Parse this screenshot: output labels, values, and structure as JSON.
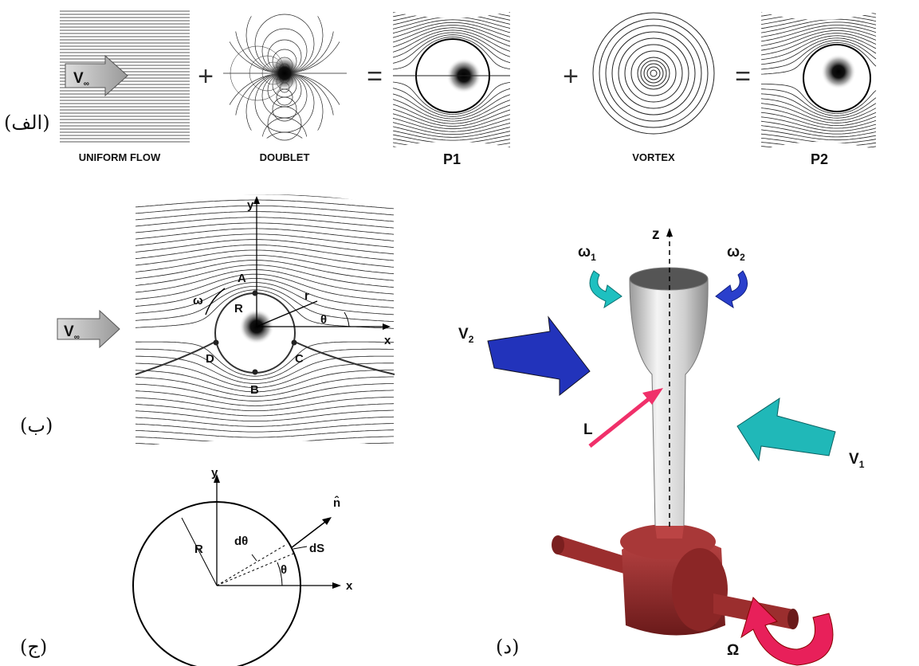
{
  "panel_a": {
    "label": "(الف)",
    "captions": [
      "UNIFORM FLOW",
      "DOUBLET",
      "P1",
      "VORTEX",
      "P2"
    ],
    "operators": [
      "+",
      "=",
      "+",
      "="
    ],
    "velocity": {
      "symbol": "V",
      "sub": "∞"
    }
  },
  "panel_b": {
    "label": "(ب)",
    "x_axis": "x",
    "y_axis": "y",
    "points": [
      "A",
      "B",
      "C",
      "D"
    ],
    "radius": "R",
    "r": "r",
    "omega": "ω",
    "theta": "θ",
    "velocity": {
      "symbol": "V",
      "sub": "∞"
    }
  },
  "panel_c": {
    "label": "(ج)",
    "x_axis": "x",
    "y_axis": "y",
    "radius": "R",
    "normal": "n̂",
    "dtheta": "dθ",
    "dS": "dS",
    "theta": "θ"
  },
  "panel_d": {
    "label": "(د)",
    "z_axis": "z",
    "omega1": {
      "symbol": "ω",
      "sub": "1"
    },
    "omega2": {
      "symbol": "ω",
      "sub": "2"
    },
    "v1": {
      "symbol": "V",
      "sub": "1"
    },
    "v2": {
      "symbol": "V",
      "sub": "2"
    },
    "lift": "L",
    "spin": "Ω"
  }
}
